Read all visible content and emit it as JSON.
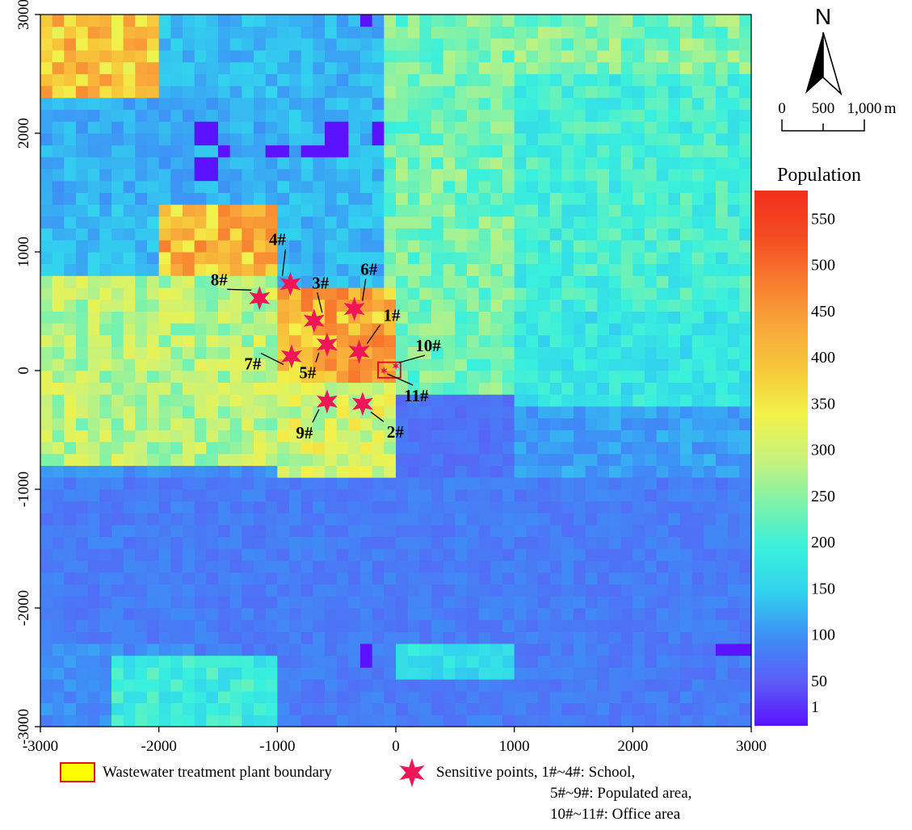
{
  "north_arrow": {
    "label": "N"
  },
  "scale_bar": {
    "labels": [
      "0",
      "500",
      "1,000"
    ],
    "unit": "m"
  },
  "colorbar": {
    "title": "Population",
    "ticks": [
      1,
      50,
      100,
      150,
      200,
      250,
      300,
      350,
      400,
      450,
      500,
      550
    ],
    "tick_labels": [
      "1",
      "50",
      "100",
      "150",
      "200",
      "250",
      "300",
      "350",
      "400",
      "450",
      "500",
      "550"
    ],
    "range": [
      1,
      580
    ],
    "colors": [
      "#5a12ff",
      "#5b5df6",
      "#3e8ef6",
      "#32d2ee",
      "#39f0dc",
      "#7ff2aa",
      "#c9f27a",
      "#f2f24a",
      "#f7c83a",
      "#f8a63a",
      "#f77a2e",
      "#f44a22",
      "#f22f1e"
    ]
  },
  "axes": {
    "x_ticks": [
      -3000,
      -2000,
      -1000,
      0,
      1000,
      2000,
      3000
    ],
    "x_tick_labels": [
      "-3000",
      "-2000",
      "-1000",
      "0",
      "1000",
      "2000",
      "3000"
    ],
    "y_ticks": [
      3000,
      2000,
      1000,
      0,
      -1000,
      -2000,
      -3000
    ],
    "y_tick_labels": [
      "3000",
      "2000",
      "1000",
      "0",
      "-1000",
      "-2000",
      "-3000"
    ],
    "xlim": [
      -3000,
      3000
    ],
    "ylim": [
      -3000,
      3000
    ]
  },
  "sensitive_points": [
    {
      "label": "1#",
      "x": -310,
      "y": 160,
      "category": "School"
    },
    {
      "label": "2#",
      "x": -280,
      "y": -280,
      "category": "School"
    },
    {
      "label": "3#",
      "x": -690,
      "y": 420,
      "category": "School"
    },
    {
      "label": "4#",
      "x": -890,
      "y": 730,
      "category": "School"
    },
    {
      "label": "5#",
      "x": -580,
      "y": 220,
      "category": "Populated area"
    },
    {
      "label": "6#",
      "x": -350,
      "y": 520,
      "category": "Populated area"
    },
    {
      "label": "7#",
      "x": -880,
      "y": 120,
      "category": "Populated area"
    },
    {
      "label": "8#",
      "x": -1150,
      "y": 610,
      "category": "Populated area"
    },
    {
      "label": "9#",
      "x": -580,
      "y": -260,
      "category": "Populated area"
    },
    {
      "label": "10#",
      "x": 0,
      "y": 40,
      "category": "Office area"
    },
    {
      "label": "11#",
      "x": -100,
      "y": 0,
      "category": "Office area"
    }
  ],
  "plant_boundary": {
    "x_range": [
      -150,
      40
    ],
    "y_range": [
      -60,
      70
    ]
  },
  "legend": {
    "boundary_label": "Wastewater treatment plant boundary",
    "points_line1": "Sensitive points, 1#~4#: School,",
    "points_line2": "5#~9#: Populated area,",
    "points_line3": "10#~11#: Office area",
    "boundary_fill": "#ffff00",
    "boundary_stroke": "#e0141e",
    "point_color": "#ef1556"
  }
}
